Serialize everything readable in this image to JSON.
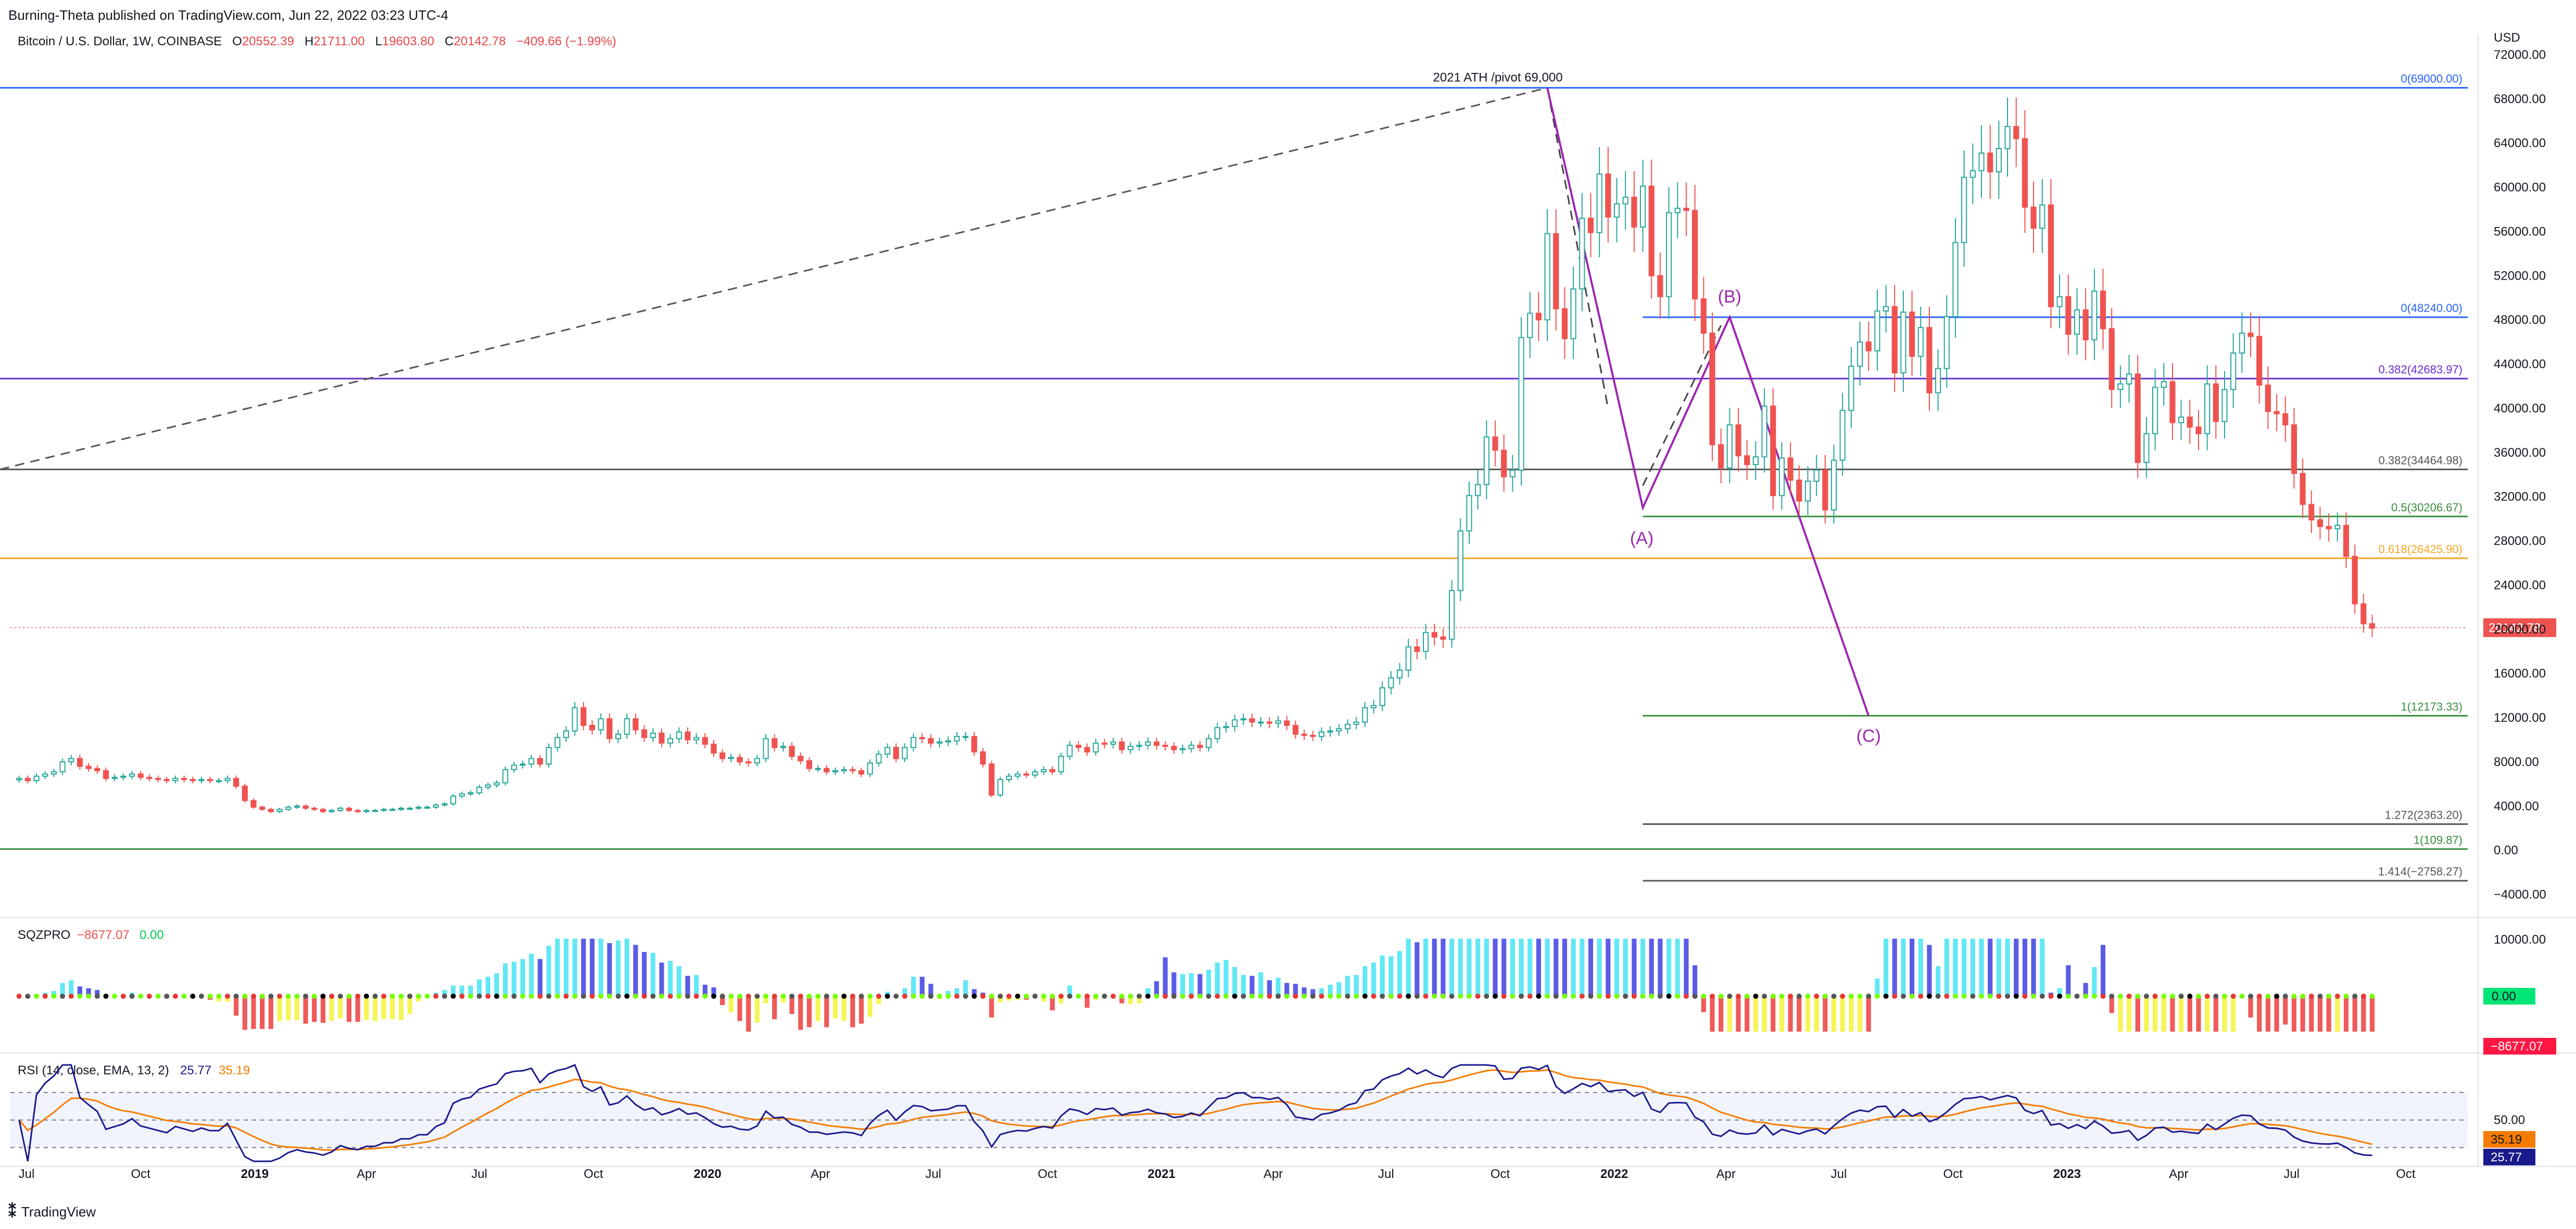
{
  "header": {
    "published": "Burning-Theta published on TradingView.com, Jun 22, 2022 03:23 UTC-4"
  },
  "symbol": {
    "name": "Bitcoin / U.S. Dollar, 1W, COINBASE",
    "o_label": "O",
    "o": "20552.39",
    "h_label": "H",
    "h": "21711.00",
    "l_label": "L",
    "l": "19603.80",
    "c_label": "C",
    "c": "20142.78",
    "change": "−409.66 (−1.99%)"
  },
  "footer": {
    "brand": "TradingView",
    "logo_icon": "tradingview-logo-icon"
  },
  "colors": {
    "up": "#26a69a",
    "down": "#ef5350",
    "fib0": "#2962ff",
    "fib382": "#6a2ccf",
    "fib05": "#388e3c",
    "fib618": "#f5a623",
    "ext": "#555555",
    "purple": "#9c27b0",
    "rsi": "#1a1a8c",
    "rsi_ema": "#f57c00"
  },
  "chart_data": [
    {
      "type": "candlestick",
      "title": "Bitcoin / U.S. Dollar, 1W, COINBASE",
      "y_unit_label": "USD",
      "ylim": [
        -6000,
        72000
      ],
      "y_ticks": [
        "72000.00",
        "68000.00",
        "64000.00",
        "60000.00",
        "56000.00",
        "52000.00",
        "48000.00",
        "44000.00",
        "40000.00",
        "36000.00",
        "32000.00",
        "28000.00",
        "24000.00",
        "20000.00",
        "16000.00",
        "12000.00",
        "8000.00",
        "4000.00",
        "0.00",
        "−4000.00"
      ],
      "x_ticks": [
        "Jul",
        "Oct",
        "2019",
        "Apr",
        "Jul",
        "Oct",
        "2020",
        "Apr",
        "Jul",
        "Oct",
        "2021",
        "Apr",
        "Jul",
        "Oct",
        "2022",
        "Apr",
        "Jul",
        "Oct",
        "2023",
        "Apr",
        "Jul",
        "Oct"
      ],
      "x_range": [
        "2018-06-18",
        "2023-11-20"
      ],
      "price_series_close_weekly": [
        6500,
        6300,
        6700,
        6900,
        7100,
        8000,
        8300,
        7600,
        7400,
        7200,
        6500,
        6600,
        6700,
        6900,
        6600,
        6500,
        6400,
        6300,
        6500,
        6400,
        6300,
        6400,
        6300,
        6300,
        6500,
        5800,
        4500,
        3900,
        3700,
        3500,
        3700,
        3900,
        4000,
        3800,
        3700,
        3500,
        3600,
        3800,
        3600,
        3500,
        3600,
        3600,
        3700,
        3700,
        3800,
        3800,
        3900,
        3900,
        4100,
        4200,
        4900,
        5100,
        5200,
        5700,
        5900,
        6100,
        7300,
        7700,
        7800,
        8300,
        7800,
        9300,
        10200,
        10800,
        12900,
        11300,
        10900,
        11900,
        10100,
        10500,
        11900,
        10900,
        10200,
        10600,
        9700,
        10100,
        10700,
        10000,
        10200,
        9600,
        8800,
        8300,
        8400,
        8000,
        7900,
        8300,
        10100,
        9300,
        9400,
        8500,
        8100,
        7400,
        7400,
        7100,
        7200,
        7300,
        7200,
        6900,
        7900,
        8700,
        9300,
        8300,
        9300,
        10200,
        10100,
        9700,
        9800,
        9900,
        10300,
        10300,
        8900,
        7800,
        5000,
        6400,
        6700,
        6900,
        6800,
        7100,
        7300,
        7100,
        8500,
        9500,
        9300,
        8900,
        9700,
        9600,
        9800,
        9100,
        9400,
        9500,
        9800,
        9500,
        9400,
        9100,
        9200,
        9500,
        9300,
        10100,
        11100,
        11200,
        11800,
        11900,
        11600,
        11600,
        11500,
        11700,
        11300,
        10500,
        10400,
        10300,
        10700,
        10800,
        11000,
        11400,
        11600,
        12900,
        13100,
        14700,
        15600,
        16300,
        18400,
        18000,
        19700,
        19300,
        19100,
        23500,
        28900,
        32100,
        33100,
        37400,
        36200,
        33800,
        34400,
        46400,
        48600,
        48000,
        55800,
        49000,
        46300,
        50800,
        57200,
        55900,
        61200,
        57300,
        58500,
        59100,
        56400,
        60100,
        52000,
        50100,
        57700,
        58100,
        57900,
        49900,
        46800,
        36700,
        34600,
        38500,
        35700,
        34900,
        35600,
        40200,
        32100,
        35500,
        33500,
        31600,
        33400,
        34400,
        30800,
        35300,
        39800,
        43800,
        46000,
        45200,
        48800,
        49200,
        43200,
        48700,
        44700,
        47300,
        41400,
        43600,
        48300,
        55000,
        60900,
        61500,
        63100,
        61400,
        63500,
        65500,
        64400,
        58200,
        56300,
        58400,
        49200,
        50100,
        46700,
        48900,
        46200,
        50600,
        47200,
        41700,
        42200,
        43100,
        35100,
        37700,
        41900,
        42400,
        38700,
        39200,
        38300,
        37700,
        42200,
        38800,
        41700,
        45000,
        46800,
        46500,
        42100,
        39700,
        39500,
        38500,
        34100,
        31300,
        29900,
        29300,
        29100,
        29400,
        26600,
        22300,
        20500,
        20100
      ],
      "annotations": [
        "2021 ATH /pivot 69,000",
        "(A)",
        "(B)",
        "(C)"
      ],
      "fib_levels": [
        {
          "label": "0(69000.00)",
          "value": 69000,
          "color": "#2962ff"
        },
        {
          "label": "0(48240.00)",
          "value": 48240,
          "color": "#2962ff"
        },
        {
          "label": "0.382(42683.97)",
          "value": 42683.97,
          "color": "#6a2ccf"
        },
        {
          "label": "0.382(34464.98)",
          "value": 34464.98,
          "color": "#555555"
        },
        {
          "label": "0.5(30206.67)",
          "value": 30206.67,
          "color": "#388e3c"
        },
        {
          "label": "0.618(26425.90)",
          "value": 26425.9,
          "color": "#f5a623"
        },
        {
          "label": "1(12173.33)",
          "value": 12173.33,
          "color": "#388e3c"
        },
        {
          "label": "1.272(2363.20)",
          "value": 2363.2,
          "color": "#555555"
        },
        {
          "label": "1(109.87)",
          "value": 109.87,
          "color": "#388e3c"
        },
        {
          "label": "1.414(−2758.27)",
          "value": -2758.27,
          "color": "#555555"
        }
      ],
      "last_price_label": "20142.78"
    },
    {
      "type": "bar",
      "title": "SQZPRO",
      "legend": [
        {
          "name": "SQZPRO",
          "value": "−8677.07",
          "value2": "0.00"
        }
      ],
      "y_ticks": [
        "10000.00"
      ],
      "value_labels": [
        "0.00",
        "−8677.07"
      ]
    },
    {
      "type": "line",
      "title": "RSI (14, close, EMA, 13, 2)",
      "legend_values": [
        "25.77",
        "35.19"
      ],
      "y_ticks": [
        "50.00"
      ],
      "value_labels": [
        "35.19",
        "25.77"
      ],
      "ylim": [
        20,
        90
      ]
    }
  ]
}
